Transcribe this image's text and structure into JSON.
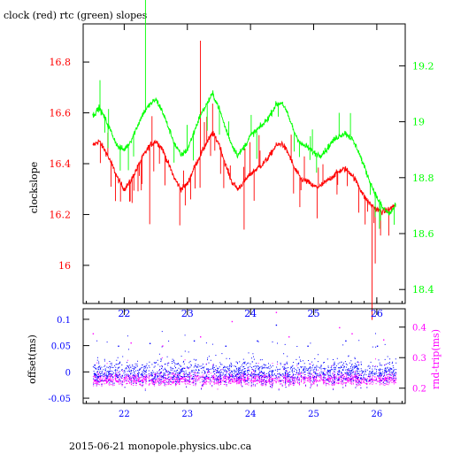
{
  "title": "clock (red) rtc (green) slopes",
  "footer": "2015-06-21 monopole.physics.ubc.ca",
  "colors": {
    "clock": "#ff0000",
    "rtc": "#00ff00",
    "offset": "#0000ff",
    "roundtrip": "#ff00ff",
    "axis": "#000000"
  },
  "chart_data": [
    {
      "type": "line",
      "title": "clock (red) rtc (green) slopes",
      "ylabel": "clockslope",
      "xlim": [
        21.35,
        26.45
      ],
      "x_ticks": [
        22,
        23,
        24,
        25,
        26
      ],
      "x_tick_labels": [
        "22",
        "23",
        "24",
        "25",
        "26"
      ],
      "ylim_left": [
        15.85,
        16.95
      ],
      "y_ticks_left": [
        16.0,
        16.2,
        16.4,
        16.6,
        16.8
      ],
      "y_tick_labels_left": [
        "16",
        "16.2",
        "16.4",
        "16.6",
        "16.8"
      ],
      "ylim_right": [
        18.35,
        19.35
      ],
      "y_ticks_right": [
        18.4,
        18.6,
        18.8,
        19.0,
        19.2
      ],
      "y_tick_labels_right": [
        "18.4",
        "18.6",
        "18.8",
        "19",
        "19.2"
      ],
      "series": [
        {
          "name": "clock",
          "axis": "left",
          "x": [
            21.5,
            21.6,
            21.7,
            21.8,
            21.9,
            22.0,
            22.1,
            22.2,
            22.3,
            22.4,
            22.5,
            22.6,
            22.7,
            22.8,
            22.9,
            23.0,
            23.1,
            23.2,
            23.3,
            23.4,
            23.5,
            23.6,
            23.7,
            23.8,
            23.9,
            24.0,
            24.1,
            24.2,
            24.3,
            24.4,
            24.5,
            24.6,
            24.7,
            24.8,
            24.9,
            25.0,
            25.1,
            25.2,
            25.3,
            25.4,
            25.5,
            25.6,
            25.7,
            25.8,
            25.9,
            26.0,
            26.1,
            26.2,
            26.3
          ],
          "y": [
            16.47,
            16.49,
            16.45,
            16.4,
            16.34,
            16.3,
            16.33,
            16.38,
            16.43,
            16.47,
            16.49,
            16.46,
            16.4,
            16.34,
            16.3,
            16.32,
            16.38,
            16.43,
            16.48,
            16.52,
            16.48,
            16.4,
            16.33,
            16.3,
            16.33,
            16.36,
            16.38,
            16.4,
            16.43,
            16.47,
            16.48,
            16.44,
            16.38,
            16.34,
            16.33,
            16.31,
            16.31,
            16.33,
            16.35,
            16.37,
            16.38,
            16.36,
            16.32,
            16.27,
            16.24,
            16.22,
            16.21,
            16.22,
            16.24
          ]
        },
        {
          "name": "rtc",
          "axis": "right",
          "x": [
            21.5,
            21.6,
            21.7,
            21.8,
            21.9,
            22.0,
            22.1,
            22.2,
            22.3,
            22.4,
            22.5,
            22.6,
            22.7,
            22.8,
            22.9,
            23.0,
            23.1,
            23.2,
            23.3,
            23.4,
            23.5,
            23.6,
            23.7,
            23.8,
            23.9,
            24.0,
            24.1,
            24.2,
            24.3,
            24.4,
            24.5,
            24.6,
            24.7,
            24.8,
            24.9,
            25.0,
            25.1,
            25.2,
            25.3,
            25.4,
            25.5,
            25.6,
            25.7,
            25.8,
            25.9,
            26.0,
            26.1,
            26.2,
            26.3
          ],
          "y": [
            19.02,
            19.05,
            19.01,
            18.96,
            18.91,
            18.9,
            18.93,
            18.98,
            19.03,
            19.06,
            19.08,
            19.04,
            18.98,
            18.92,
            18.88,
            18.9,
            18.96,
            19.02,
            19.06,
            19.1,
            19.05,
            18.98,
            18.92,
            18.88,
            18.91,
            18.95,
            18.97,
            18.99,
            19.02,
            19.06,
            19.07,
            19.02,
            18.96,
            18.92,
            18.91,
            18.89,
            18.88,
            18.9,
            18.93,
            18.95,
            18.96,
            18.94,
            18.9,
            18.84,
            18.78,
            18.73,
            18.69,
            18.67,
            18.7
          ]
        }
      ]
    },
    {
      "type": "scatter",
      "ylabel": "offset(ms)",
      "ylabel_right": "rnd-trip(ms)",
      "xlim": [
        21.35,
        26.45
      ],
      "x_ticks": [
        22,
        23,
        24,
        25,
        26
      ],
      "x_tick_labels": [
        "22",
        "23",
        "24",
        "25",
        "26"
      ],
      "ylim_left": [
        -0.06,
        0.12
      ],
      "y_ticks_left": [
        -0.05,
        0,
        0.05,
        0.1
      ],
      "y_tick_labels_left": [
        "-0.05",
        "0",
        "0.05",
        "0.1"
      ],
      "ylim_right": [
        0.15,
        0.46
      ],
      "y_ticks_right": [
        0.2,
        0.3,
        0.4
      ],
      "y_tick_labels_right": [
        "0.2",
        "0.3",
        "0.4"
      ],
      "series": [
        {
          "name": "offset",
          "axis": "left",
          "x_range": [
            21.5,
            26.3
          ],
          "center": 0.0,
          "spread": 0.022,
          "outliers_x": [
            21.9,
            22.4,
            23.1,
            23.6,
            24.1,
            24.4,
            24.9,
            25.5,
            26.0
          ],
          "outliers_y": [
            0.05,
            0.055,
            0.06,
            0.05,
            0.06,
            0.09,
            0.05,
            0.06,
            0.05
          ]
        },
        {
          "name": "round-trip",
          "axis": "right",
          "x_range": [
            21.5,
            26.3
          ],
          "center": 0.23,
          "spread": 0.02,
          "outliers_x": [
            21.5,
            22.1,
            22.6,
            23.2,
            23.7,
            24.4,
            24.6,
            25.4,
            25.6,
            26.1
          ],
          "outliers_y": [
            0.38,
            0.35,
            0.34,
            0.37,
            0.42,
            0.45,
            0.37,
            0.4,
            0.38,
            0.36
          ]
        }
      ]
    }
  ]
}
